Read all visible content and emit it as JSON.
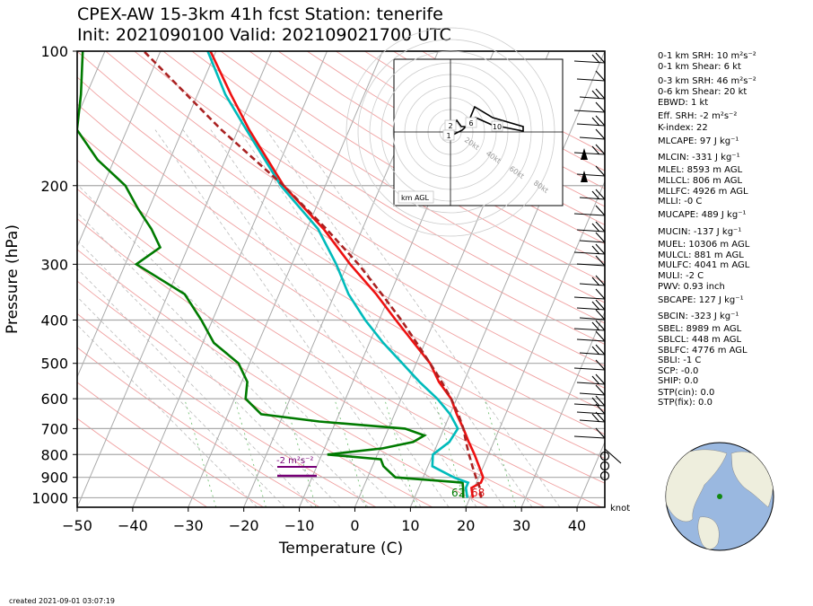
{
  "title": {
    "line1": "CPEX-AW 15-3km  41h fcst  Station: tenerife",
    "line2": "Init: 2021090100  Valid: 202109021700 UTC"
  },
  "chart_data": {
    "type": "line",
    "subtype": "skew-T log-p sounding",
    "xlabel": "Temperature (C)",
    "ylabel": "Pressure (hPa)",
    "xlim": [
      -50,
      45
    ],
    "ylim": [
      1050,
      100
    ],
    "y_scale": "log",
    "x_ticks": [
      -50,
      -40,
      -30,
      -20,
      -10,
      0,
      10,
      20,
      30,
      40
    ],
    "y_ticks": [
      100,
      200,
      300,
      400,
      500,
      600,
      700,
      800,
      900,
      1000
    ],
    "grid": true,
    "series": [
      {
        "name": "temperature",
        "color": "#ee1111",
        "points": [
          [
            1000,
            20.5
          ],
          [
            950,
            19.5
          ],
          [
            925,
            20.8
          ],
          [
            900,
            20.8
          ],
          [
            850,
            19.2
          ],
          [
            800,
            17.5
          ],
          [
            750,
            15.5
          ],
          [
            700,
            13.5
          ],
          [
            650,
            11.2
          ],
          [
            600,
            9.0
          ],
          [
            550,
            5.5
          ],
          [
            500,
            2.5
          ],
          [
            450,
            -2.0
          ],
          [
            400,
            -7.0
          ],
          [
            350,
            -12.5
          ],
          [
            300,
            -19.5
          ],
          [
            250,
            -27.0
          ],
          [
            200,
            -37.5
          ],
          [
            150,
            -48.0
          ],
          [
            125,
            -54.0
          ],
          [
            100,
            -61.0
          ]
        ]
      },
      {
        "name": "dewpoint",
        "color": "#007a00",
        "points": [
          [
            1000,
            18.8
          ],
          [
            950,
            18.0
          ],
          [
            925,
            17.5
          ],
          [
            900,
            5.0
          ],
          [
            850,
            2.0
          ],
          [
            820,
            1.0
          ],
          [
            800,
            -9.0
          ],
          [
            775,
            0.5
          ],
          [
            750,
            5.5
          ],
          [
            725,
            7.0
          ],
          [
            700,
            3.0
          ],
          [
            675,
            -13.0
          ],
          [
            650,
            -24.0
          ],
          [
            600,
            -28.0
          ],
          [
            550,
            -29.0
          ],
          [
            500,
            -32.0
          ],
          [
            450,
            -38.0
          ],
          [
            400,
            -42.0
          ],
          [
            350,
            -47.0
          ],
          [
            300,
            -58.0
          ],
          [
            275,
            -55.0
          ],
          [
            250,
            -58.0
          ],
          [
            225,
            -62.0
          ],
          [
            200,
            -66.0
          ],
          [
            175,
            -73.0
          ],
          [
            150,
            -79.0
          ],
          [
            125,
            -81.0
          ],
          [
            100,
            -84.0
          ]
        ]
      },
      {
        "name": "wetbulb",
        "color": "#00bbbb",
        "points": [
          [
            1000,
            19.5
          ],
          [
            950,
            18.5
          ],
          [
            925,
            18.5
          ],
          [
            900,
            15.5
          ],
          [
            850,
            10.8
          ],
          [
            800,
            10.0
          ],
          [
            750,
            12.0
          ],
          [
            700,
            12.5
          ],
          [
            650,
            10.0
          ],
          [
            600,
            6.5
          ],
          [
            550,
            2.0
          ],
          [
            500,
            -2.5
          ],
          [
            450,
            -7.5
          ],
          [
            400,
            -12.5
          ],
          [
            350,
            -17.5
          ],
          [
            300,
            -22.0
          ],
          [
            250,
            -28.0
          ],
          [
            200,
            -38.0
          ],
          [
            150,
            -48.5
          ],
          [
            125,
            -55.0
          ],
          [
            100,
            -61.5
          ]
        ]
      },
      {
        "name": "parcel",
        "color": "#aa2222",
        "points": [
          [
            1000,
            22.0
          ],
          [
            950,
            21.0
          ],
          [
            900,
            19.5
          ],
          [
            850,
            18.0
          ],
          [
            800,
            16.5
          ],
          [
            750,
            15.0
          ],
          [
            700,
            13.5
          ],
          [
            650,
            11.5
          ],
          [
            600,
            9.0
          ],
          [
            550,
            6.0
          ],
          [
            500,
            2.5
          ],
          [
            450,
            -1.5
          ],
          [
            400,
            -6.0
          ],
          [
            350,
            -11.5
          ],
          [
            300,
            -18.0
          ],
          [
            250,
            -26.5
          ],
          [
            200,
            -37.5
          ],
          [
            150,
            -53.0
          ],
          [
            125,
            -62.0
          ],
          [
            100,
            -73.0
          ]
        ]
      }
    ],
    "surface_labels": {
      "dewpoint": "62",
      "temperature": "68"
    },
    "srh_bar_label": "-2 m²s⁻²",
    "wind_unit": "knot",
    "hodograph": {
      "ring_labels": [
        "20kt",
        "40kt",
        "60kt",
        "80kt"
      ],
      "height_labels": [
        "2",
        "1",
        "6",
        "10"
      ],
      "legend": "km AGL"
    }
  },
  "indices": [
    "0-1 km SRH: 10 m²s⁻²",
    "0-1 km Shear: 6 kt",
    "0-3 km SRH: 46 m²s⁻²",
    "0-6 km Shear: 20 kt",
    "EBWD: 1 kt",
    "Eff. SRH: -2 m²s⁻²",
    "K-index: 22",
    "MLCAPE: 97 J kg⁻¹",
    "MLCIN: -331 J kg⁻¹",
    "MLEL: 8593 m AGL",
    "MLLCL: 806 m AGL",
    "MLLFC: 4926 m AGL",
    "MLLI: -0 C",
    "MUCAPE: 489 J kg⁻¹",
    "MUCIN: -137 J kg⁻¹",
    "MUEL: 10306 m AGL",
    "MULCL: 881 m AGL",
    "MULFC: 4041 m AGL",
    "MULI: -2 C",
    "PWV: 0.93 inch",
    "SBCAPE: 127 J kg⁻¹",
    "SBCIN: -323 J kg⁻¹",
    "SBEL: 8989 m AGL",
    "SBLCL: 448 m AGL",
    "SBLFC: 4776 m AGL",
    "SBLI: -1 C",
    "SCP: -0.0",
    "SHIP: 0.0",
    "STP(cin): 0.0",
    "STP(fix): 0.0"
  ],
  "footer": {
    "created": "created 2021-09-01 03:07:19"
  },
  "colors": {
    "ocean": "#9ab8e0",
    "land": "#eeeedd",
    "station_dot": "#118811"
  }
}
